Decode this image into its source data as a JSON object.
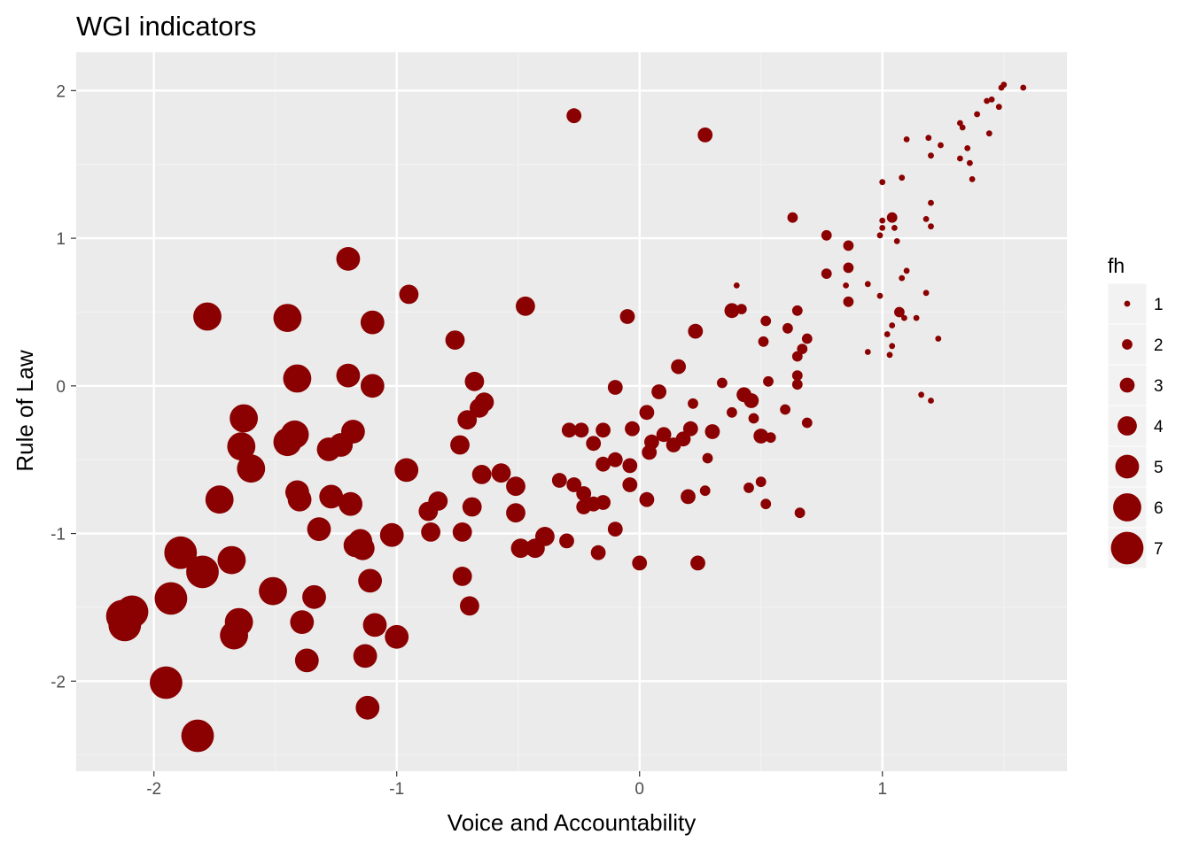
{
  "chart_data": {
    "type": "scatter",
    "title": "WGI indicators",
    "xlabel": "Voice and Accountability",
    "ylabel": "Rule of Law",
    "xlim": [
      -2.32,
      1.76
    ],
    "ylim": [
      -2.61,
      2.26
    ],
    "x_ticks": [
      -2,
      -1,
      0,
      1
    ],
    "y_ticks": [
      -2,
      -1,
      0,
      1,
      2
    ],
    "grid": true,
    "panel_background": "#ebebeb",
    "point_color": "#8b0000",
    "legend": {
      "title": "fh",
      "position": "right",
      "size_levels": [
        1,
        2,
        3,
        4,
        5,
        6,
        7
      ]
    },
    "points": [
      {
        "x": 1.58,
        "y": 2.02,
        "size": 1
      },
      {
        "x": 1.5,
        "y": 2.04,
        "size": 1
      },
      {
        "x": 1.49,
        "y": 2.02,
        "size": 1
      },
      {
        "x": 1.45,
        "y": 1.94,
        "size": 1
      },
      {
        "x": 1.43,
        "y": 1.93,
        "size": 1
      },
      {
        "x": 1.48,
        "y": 1.89,
        "size": 1
      },
      {
        "x": 1.39,
        "y": 1.84,
        "size": 1
      },
      {
        "x": 1.32,
        "y": 1.78,
        "size": 1
      },
      {
        "x": 1.33,
        "y": 1.75,
        "size": 1
      },
      {
        "x": 1.44,
        "y": 1.71,
        "size": 1
      },
      {
        "x": 1.19,
        "y": 1.68,
        "size": 1
      },
      {
        "x": 1.1,
        "y": 1.67,
        "size": 1
      },
      {
        "x": 1.24,
        "y": 1.63,
        "size": 1
      },
      {
        "x": 1.35,
        "y": 1.61,
        "size": 1
      },
      {
        "x": 1.2,
        "y": 1.56,
        "size": 1
      },
      {
        "x": 1.32,
        "y": 1.54,
        "size": 1
      },
      {
        "x": 1.36,
        "y": 1.51,
        "size": 1
      },
      {
        "x": 1.08,
        "y": 1.41,
        "size": 1
      },
      {
        "x": 1.37,
        "y": 1.4,
        "size": 1
      },
      {
        "x": 1.0,
        "y": 1.38,
        "size": 1
      },
      {
        "x": 1.2,
        "y": 1.24,
        "size": 1
      },
      {
        "x": 1.04,
        "y": 1.14,
        "size": 2
      },
      {
        "x": 1.0,
        "y": 1.12,
        "size": 1
      },
      {
        "x": 1.18,
        "y": 1.13,
        "size": 1
      },
      {
        "x": 1.0,
        "y": 1.07,
        "size": 1
      },
      {
        "x": 1.05,
        "y": 1.07,
        "size": 1
      },
      {
        "x": 1.2,
        "y": 1.08,
        "size": 1
      },
      {
        "x": 0.99,
        "y": 1.02,
        "size": 1
      },
      {
        "x": 1.06,
        "y": 0.98,
        "size": 1
      },
      {
        "x": 1.1,
        "y": 0.78,
        "size": 1
      },
      {
        "x": 1.08,
        "y": 0.73,
        "size": 1
      },
      {
        "x": 0.94,
        "y": 0.69,
        "size": 1
      },
      {
        "x": 0.85,
        "y": 0.68,
        "size": 1
      },
      {
        "x": 0.99,
        "y": 0.61,
        "size": 1
      },
      {
        "x": 1.18,
        "y": 0.63,
        "size": 1
      },
      {
        "x": 1.07,
        "y": 0.5,
        "size": 2
      },
      {
        "x": 1.09,
        "y": 0.46,
        "size": 1
      },
      {
        "x": 1.14,
        "y": 0.46,
        "size": 1
      },
      {
        "x": 1.04,
        "y": 0.41,
        "size": 1
      },
      {
        "x": 1.02,
        "y": 0.35,
        "size": 1
      },
      {
        "x": 1.23,
        "y": 0.32,
        "size": 1
      },
      {
        "x": 1.04,
        "y": 0.27,
        "size": 1
      },
      {
        "x": 0.94,
        "y": 0.23,
        "size": 1
      },
      {
        "x": 1.03,
        "y": 0.21,
        "size": 1
      },
      {
        "x": 1.16,
        "y": -0.06,
        "size": 1
      },
      {
        "x": 1.2,
        "y": -0.1,
        "size": 1
      },
      {
        "x": 0.4,
        "y": 0.68,
        "size": 1
      },
      {
        "x": 0.63,
        "y": 1.14,
        "size": 2
      },
      {
        "x": 0.77,
        "y": 1.02,
        "size": 2
      },
      {
        "x": 0.86,
        "y": 0.95,
        "size": 2
      },
      {
        "x": 0.86,
        "y": 0.8,
        "size": 2
      },
      {
        "x": 0.77,
        "y": 0.76,
        "size": 2
      },
      {
        "x": 0.86,
        "y": 0.57,
        "size": 2
      },
      {
        "x": 0.38,
        "y": 0.51,
        "size": 3
      },
      {
        "x": 0.42,
        "y": 0.52,
        "size": 2
      },
      {
        "x": 0.65,
        "y": 0.51,
        "size": 2
      },
      {
        "x": 0.52,
        "y": 0.44,
        "size": 2
      },
      {
        "x": 0.61,
        "y": 0.39,
        "size": 2
      },
      {
        "x": 0.69,
        "y": 0.32,
        "size": 2
      },
      {
        "x": 0.51,
        "y": 0.3,
        "size": 2
      },
      {
        "x": 0.67,
        "y": 0.25,
        "size": 2
      },
      {
        "x": 0.65,
        "y": 0.2,
        "size": 2
      },
      {
        "x": 0.65,
        "y": 0.07,
        "size": 2
      },
      {
        "x": 0.53,
        "y": 0.03,
        "size": 2
      },
      {
        "x": 0.65,
        "y": 0.01,
        "size": 2
      },
      {
        "x": 0.34,
        "y": 0.02,
        "size": 2
      },
      {
        "x": 0.6,
        "y": -0.16,
        "size": 2
      },
      {
        "x": 0.69,
        "y": -0.25,
        "size": 2
      },
      {
        "x": 0.66,
        "y": -0.86,
        "size": 2
      },
      {
        "x": 0.52,
        "y": -0.8,
        "size": 2
      },
      {
        "x": 0.5,
        "y": -0.65,
        "size": 2
      },
      {
        "x": 0.45,
        "y": -0.69,
        "size": 2
      },
      {
        "x": 0.54,
        "y": -0.35,
        "size": 2
      },
      {
        "x": 0.47,
        "y": -0.22,
        "size": 2
      },
      {
        "x": 0.38,
        "y": -0.18,
        "size": 2
      },
      {
        "x": 0.27,
        "y": 1.7,
        "size": 3
      },
      {
        "x": -0.27,
        "y": 1.83,
        "size": 3
      },
      {
        "x": 0.23,
        "y": 0.37,
        "size": 3
      },
      {
        "x": 0.16,
        "y": 0.13,
        "size": 3
      },
      {
        "x": -0.05,
        "y": 0.47,
        "size": 3
      },
      {
        "x": 0.43,
        "y": -0.06,
        "size": 3
      },
      {
        "x": 0.46,
        "y": -0.1,
        "size": 3
      },
      {
        "x": 0.5,
        "y": -0.34,
        "size": 3
      },
      {
        "x": 0.3,
        "y": -0.31,
        "size": 3
      },
      {
        "x": 0.22,
        "y": -0.12,
        "size": 2
      },
      {
        "x": 0.08,
        "y": -0.04,
        "size": 3
      },
      {
        "x": 0.03,
        "y": -0.18,
        "size": 3
      },
      {
        "x": 0.21,
        "y": -0.29,
        "size": 3
      },
      {
        "x": 0.18,
        "y": -0.36,
        "size": 3
      },
      {
        "x": 0.1,
        "y": -0.33,
        "size": 3
      },
      {
        "x": 0.14,
        "y": -0.4,
        "size": 3
      },
      {
        "x": 0.05,
        "y": -0.38,
        "size": 3
      },
      {
        "x": -0.03,
        "y": -0.29,
        "size": 3
      },
      {
        "x": 0.04,
        "y": -0.45,
        "size": 3
      },
      {
        "x": 0.28,
        "y": -0.49,
        "size": 2
      },
      {
        "x": 0.27,
        "y": -0.71,
        "size": 2
      },
      {
        "x": 0.2,
        "y": -0.75,
        "size": 3
      },
      {
        "x": 0.03,
        "y": -0.77,
        "size": 3
      },
      {
        "x": 0.0,
        "y": -1.2,
        "size": 3
      },
      {
        "x": 0.24,
        "y": -1.2,
        "size": 3
      },
      {
        "x": -0.1,
        "y": -0.97,
        "size": 3
      },
      {
        "x": -0.17,
        "y": -1.13,
        "size": 3
      },
      {
        "x": -0.04,
        "y": -0.54,
        "size": 3
      },
      {
        "x": -0.04,
        "y": -0.67,
        "size": 3
      },
      {
        "x": -0.1,
        "y": -0.01,
        "size": 3
      },
      {
        "x": -0.1,
        "y": -0.5,
        "size": 3
      },
      {
        "x": -0.15,
        "y": -0.53,
        "size": 3
      },
      {
        "x": -0.15,
        "y": -0.79,
        "size": 3
      },
      {
        "x": -0.19,
        "y": -0.8,
        "size": 3
      },
      {
        "x": -0.23,
        "y": -0.82,
        "size": 3
      },
      {
        "x": -0.15,
        "y": -0.3,
        "size": 3
      },
      {
        "x": -0.19,
        "y": -0.39,
        "size": 3
      },
      {
        "x": -0.24,
        "y": -0.3,
        "size": 3
      },
      {
        "x": -0.29,
        "y": -0.3,
        "size": 3
      },
      {
        "x": -0.27,
        "y": -0.67,
        "size": 3
      },
      {
        "x": -0.23,
        "y": -0.73,
        "size": 3
      },
      {
        "x": -0.33,
        "y": -0.64,
        "size": 3
      },
      {
        "x": -0.3,
        "y": -1.05,
        "size": 3
      },
      {
        "x": -0.47,
        "y": 0.54,
        "size": 4
      },
      {
        "x": -0.95,
        "y": 0.62,
        "size": 4
      },
      {
        "x": -0.76,
        "y": 0.31,
        "size": 4
      },
      {
        "x": -0.68,
        "y": 0.03,
        "size": 4
      },
      {
        "x": -0.64,
        "y": -0.11,
        "size": 4
      },
      {
        "x": -0.66,
        "y": -0.15,
        "size": 4
      },
      {
        "x": -0.71,
        "y": -0.23,
        "size": 4
      },
      {
        "x": -0.74,
        "y": -0.4,
        "size": 4
      },
      {
        "x": -0.65,
        "y": -0.6,
        "size": 4
      },
      {
        "x": -0.57,
        "y": -0.59,
        "size": 4
      },
      {
        "x": -0.51,
        "y": -0.68,
        "size": 4
      },
      {
        "x": -0.51,
        "y": -0.86,
        "size": 4
      },
      {
        "x": -0.69,
        "y": -0.82,
        "size": 4
      },
      {
        "x": -0.83,
        "y": -0.78,
        "size": 4
      },
      {
        "x": -0.87,
        "y": -0.85,
        "size": 4
      },
      {
        "x": -0.86,
        "y": -0.99,
        "size": 4
      },
      {
        "x": -0.73,
        "y": -0.99,
        "size": 4
      },
      {
        "x": -0.49,
        "y": -1.1,
        "size": 4
      },
      {
        "x": -0.43,
        "y": -1.1,
        "size": 4
      },
      {
        "x": -0.39,
        "y": -1.02,
        "size": 4
      },
      {
        "x": -0.73,
        "y": -1.29,
        "size": 4
      },
      {
        "x": -0.7,
        "y": -1.49,
        "size": 4
      },
      {
        "x": -1.2,
        "y": 0.86,
        "size": 5
      },
      {
        "x": -1.1,
        "y": 0.43,
        "size": 5
      },
      {
        "x": -1.2,
        "y": 0.07,
        "size": 5
      },
      {
        "x": -1.1,
        "y": 0.0,
        "size": 5
      },
      {
        "x": -0.96,
        "y": -0.57,
        "size": 5
      },
      {
        "x": -1.18,
        "y": -0.31,
        "size": 5
      },
      {
        "x": -1.23,
        "y": -0.4,
        "size": 5
      },
      {
        "x": -1.28,
        "y": -0.43,
        "size": 5
      },
      {
        "x": -1.19,
        "y": -0.8,
        "size": 5
      },
      {
        "x": -1.27,
        "y": -0.75,
        "size": 5
      },
      {
        "x": -1.02,
        "y": -1.01,
        "size": 5
      },
      {
        "x": -1.15,
        "y": -1.05,
        "size": 5
      },
      {
        "x": -1.17,
        "y": -1.08,
        "size": 5
      },
      {
        "x": -1.14,
        "y": -1.1,
        "size": 5
      },
      {
        "x": -1.11,
        "y": -1.32,
        "size": 5
      },
      {
        "x": -1.09,
        "y": -1.62,
        "size": 5
      },
      {
        "x": -1.0,
        "y": -1.7,
        "size": 5
      },
      {
        "x": -1.13,
        "y": -1.83,
        "size": 5
      },
      {
        "x": -1.12,
        "y": -2.18,
        "size": 5
      },
      {
        "x": -1.34,
        "y": -1.43,
        "size": 5
      },
      {
        "x": -1.37,
        "y": -1.86,
        "size": 5
      },
      {
        "x": -1.39,
        "y": -1.6,
        "size": 5
      },
      {
        "x": -1.32,
        "y": -0.97,
        "size": 5
      },
      {
        "x": -1.41,
        "y": -0.72,
        "size": 5
      },
      {
        "x": -1.4,
        "y": -0.77,
        "size": 5
      },
      {
        "x": -1.78,
        "y": 0.47,
        "size": 6
      },
      {
        "x": -1.45,
        "y": 0.46,
        "size": 6
      },
      {
        "x": -1.41,
        "y": 0.05,
        "size": 6
      },
      {
        "x": -1.63,
        "y": -0.22,
        "size": 6
      },
      {
        "x": -1.42,
        "y": -0.33,
        "size": 6
      },
      {
        "x": -1.45,
        "y": -0.38,
        "size": 6
      },
      {
        "x": -1.64,
        "y": -0.41,
        "size": 6
      },
      {
        "x": -1.6,
        "y": -0.56,
        "size": 6
      },
      {
        "x": -1.73,
        "y": -0.77,
        "size": 6
      },
      {
        "x": -1.51,
        "y": -1.39,
        "size": 6
      },
      {
        "x": -1.68,
        "y": -1.18,
        "size": 6
      },
      {
        "x": -1.65,
        "y": -1.6,
        "size": 6
      },
      {
        "x": -1.67,
        "y": -1.69,
        "size": 6
      },
      {
        "x": -1.89,
        "y": -1.13,
        "size": 7
      },
      {
        "x": -1.8,
        "y": -1.26,
        "size": 7
      },
      {
        "x": -1.93,
        "y": -1.44,
        "size": 7
      },
      {
        "x": -2.09,
        "y": -1.53,
        "size": 7
      },
      {
        "x": -2.13,
        "y": -1.56,
        "size": 7
      },
      {
        "x": -2.12,
        "y": -1.62,
        "size": 7
      },
      {
        "x": -1.95,
        "y": -2.01,
        "size": 7
      },
      {
        "x": -1.82,
        "y": -2.37,
        "size": 7
      }
    ]
  }
}
